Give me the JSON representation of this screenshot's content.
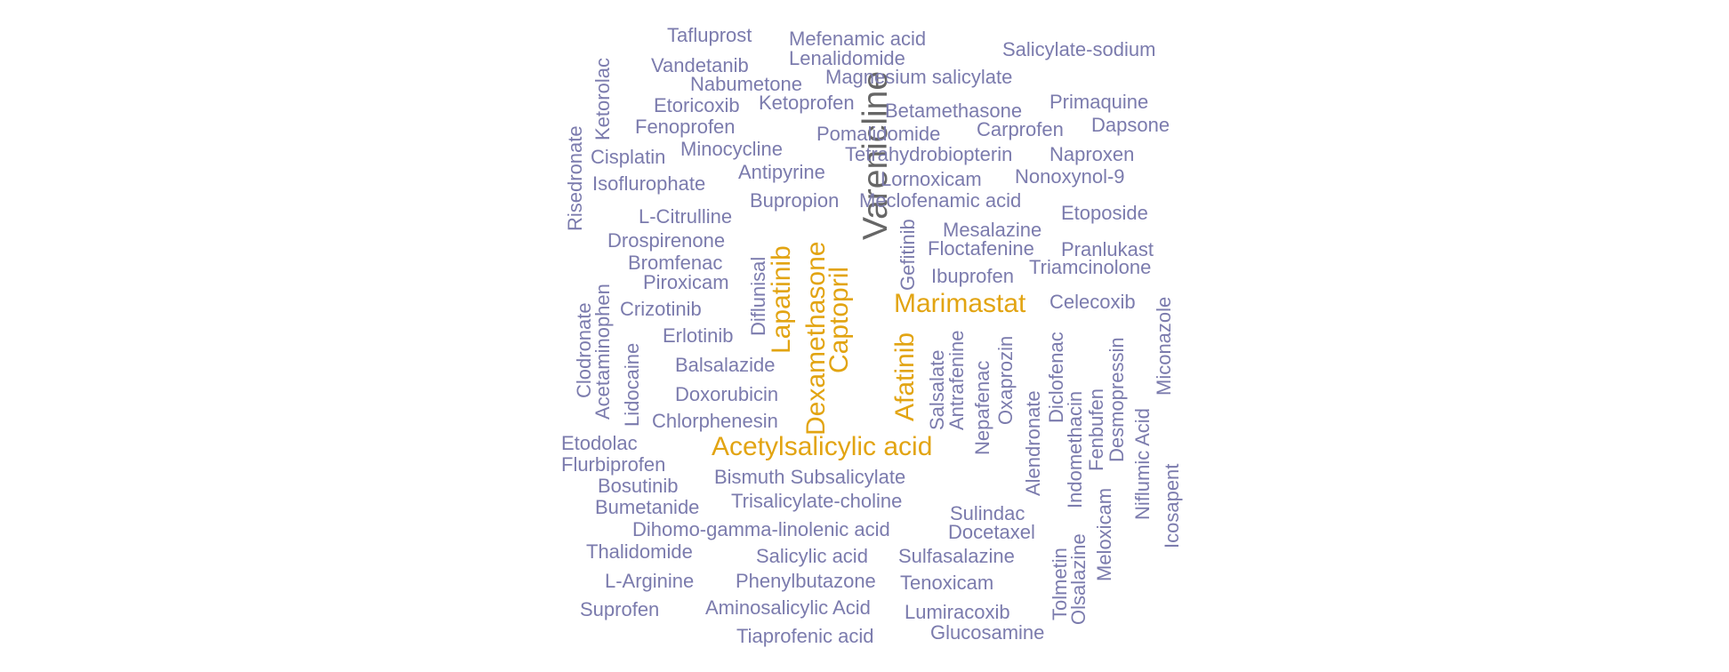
{
  "palette": {
    "muted": "#7b7bad",
    "highlight": "#e2a412",
    "top": "#666666"
  },
  "words": [
    {
      "text": "Varenicline",
      "tier": "top"
    },
    {
      "text": "Acetylsalicylic acid",
      "tier": "highlight"
    },
    {
      "text": "Dexamethasone",
      "tier": "highlight"
    },
    {
      "text": "Captopril",
      "tier": "highlight"
    },
    {
      "text": "Marimastat",
      "tier": "highlight"
    },
    {
      "text": "Lapatinib",
      "tier": "highlight"
    },
    {
      "text": "Afatinib",
      "tier": "highlight"
    },
    {
      "text": "Tafluprost",
      "tier": "muted"
    },
    {
      "text": "Mefenamic acid",
      "tier": "muted"
    },
    {
      "text": "Salicylate-sodium",
      "tier": "muted"
    },
    {
      "text": "Vandetanib",
      "tier": "muted"
    },
    {
      "text": "Lenalidomide",
      "tier": "muted"
    },
    {
      "text": "Ketorolac",
      "tier": "muted"
    },
    {
      "text": "Nabumetone",
      "tier": "muted"
    },
    {
      "text": "Magnesium salicylate",
      "tier": "muted"
    },
    {
      "text": "Etoricoxib",
      "tier": "muted"
    },
    {
      "text": "Ketoprofen",
      "tier": "muted"
    },
    {
      "text": "Primaquine",
      "tier": "muted"
    },
    {
      "text": "Betamethasone",
      "tier": "muted"
    },
    {
      "text": "Risedronate",
      "tier": "muted"
    },
    {
      "text": "Fenoprofen",
      "tier": "muted"
    },
    {
      "text": "Dapsone",
      "tier": "muted"
    },
    {
      "text": "Pomalidomide",
      "tier": "muted"
    },
    {
      "text": "Carprofen",
      "tier": "muted"
    },
    {
      "text": "Minocycline",
      "tier": "muted"
    },
    {
      "text": "Cisplatin",
      "tier": "muted"
    },
    {
      "text": "Tetrahydrobiopterin",
      "tier": "muted"
    },
    {
      "text": "Naproxen",
      "tier": "muted"
    },
    {
      "text": "Antipyrine",
      "tier": "muted"
    },
    {
      "text": "Nonoxynol-9",
      "tier": "muted"
    },
    {
      "text": "Isoflurophate",
      "tier": "muted"
    },
    {
      "text": "Lornoxicam",
      "tier": "muted"
    },
    {
      "text": "Bupropion",
      "tier": "muted"
    },
    {
      "text": "Meclofenamic acid",
      "tier": "muted"
    },
    {
      "text": "L-Citrulline",
      "tier": "muted"
    },
    {
      "text": "Etoposide",
      "tier": "muted"
    },
    {
      "text": "Gefitinib",
      "tier": "muted"
    },
    {
      "text": "Mesalazine",
      "tier": "muted"
    },
    {
      "text": "Drospirenone",
      "tier": "muted"
    },
    {
      "text": "Floctafenine",
      "tier": "muted"
    },
    {
      "text": "Pranlukast",
      "tier": "muted"
    },
    {
      "text": "Diflunisal",
      "tier": "muted"
    },
    {
      "text": "Bromfenac",
      "tier": "muted"
    },
    {
      "text": "Triamcinolone",
      "tier": "muted"
    },
    {
      "text": "Ibuprofen",
      "tier": "muted"
    },
    {
      "text": "Piroxicam",
      "tier": "muted"
    },
    {
      "text": "Acetaminophen",
      "tier": "muted"
    },
    {
      "text": "Miconazole",
      "tier": "muted"
    },
    {
      "text": "Clodronate",
      "tier": "muted"
    },
    {
      "text": "Crizotinib",
      "tier": "muted"
    },
    {
      "text": "Celecoxib",
      "tier": "muted"
    },
    {
      "text": "Erlotinib",
      "tier": "muted"
    },
    {
      "text": "Desmopressin",
      "tier": "muted"
    },
    {
      "text": "Lidocaine",
      "tier": "muted"
    },
    {
      "text": "Antrafenine",
      "tier": "muted"
    },
    {
      "text": "Diclofenac",
      "tier": "muted"
    },
    {
      "text": "Balsalazide",
      "tier": "muted"
    },
    {
      "text": "Oxaprozin",
      "tier": "muted"
    },
    {
      "text": "Salsalate",
      "tier": "muted"
    },
    {
      "text": "Nepafenac",
      "tier": "muted"
    },
    {
      "text": "Doxorubicin",
      "tier": "muted"
    },
    {
      "text": "Indomethacin",
      "tier": "muted"
    },
    {
      "text": "Fenbufen",
      "tier": "muted"
    },
    {
      "text": "Alendronate",
      "tier": "muted"
    },
    {
      "text": "Chlorphenesin",
      "tier": "muted"
    },
    {
      "text": "Niflumic Acid",
      "tier": "muted"
    },
    {
      "text": "Etodolac",
      "tier": "muted"
    },
    {
      "text": "Flurbiprofen",
      "tier": "muted"
    },
    {
      "text": "Icosapent",
      "tier": "muted"
    },
    {
      "text": "Bosutinib",
      "tier": "muted"
    },
    {
      "text": "Bismuth Subsalicylate",
      "tier": "muted"
    },
    {
      "text": "Bumetanide",
      "tier": "muted"
    },
    {
      "text": "Trisalicylate-choline",
      "tier": "muted"
    },
    {
      "text": "Sulindac",
      "tier": "muted"
    },
    {
      "text": "Meloxicam",
      "tier": "muted"
    },
    {
      "text": "Dihomo-gamma-linolenic acid",
      "tier": "muted"
    },
    {
      "text": "Docetaxel",
      "tier": "muted"
    },
    {
      "text": "Thalidomide",
      "tier": "muted"
    },
    {
      "text": "Salicylic acid",
      "tier": "muted"
    },
    {
      "text": "Sulfasalazine",
      "tier": "muted"
    },
    {
      "text": "Tolmetin",
      "tier": "muted"
    },
    {
      "text": "Olsalazine",
      "tier": "muted"
    },
    {
      "text": "L-Arginine",
      "tier": "muted"
    },
    {
      "text": "Phenylbutazone",
      "tier": "muted"
    },
    {
      "text": "Tenoxicam",
      "tier": "muted"
    },
    {
      "text": "Suprofen",
      "tier": "muted"
    },
    {
      "text": "Aminosalicylic Acid",
      "tier": "muted"
    },
    {
      "text": "Lumiracoxib",
      "tier": "muted"
    },
    {
      "text": "Glucosamine",
      "tier": "muted"
    },
    {
      "text": "Tiaprofenic acid",
      "tier": "muted"
    }
  ]
}
